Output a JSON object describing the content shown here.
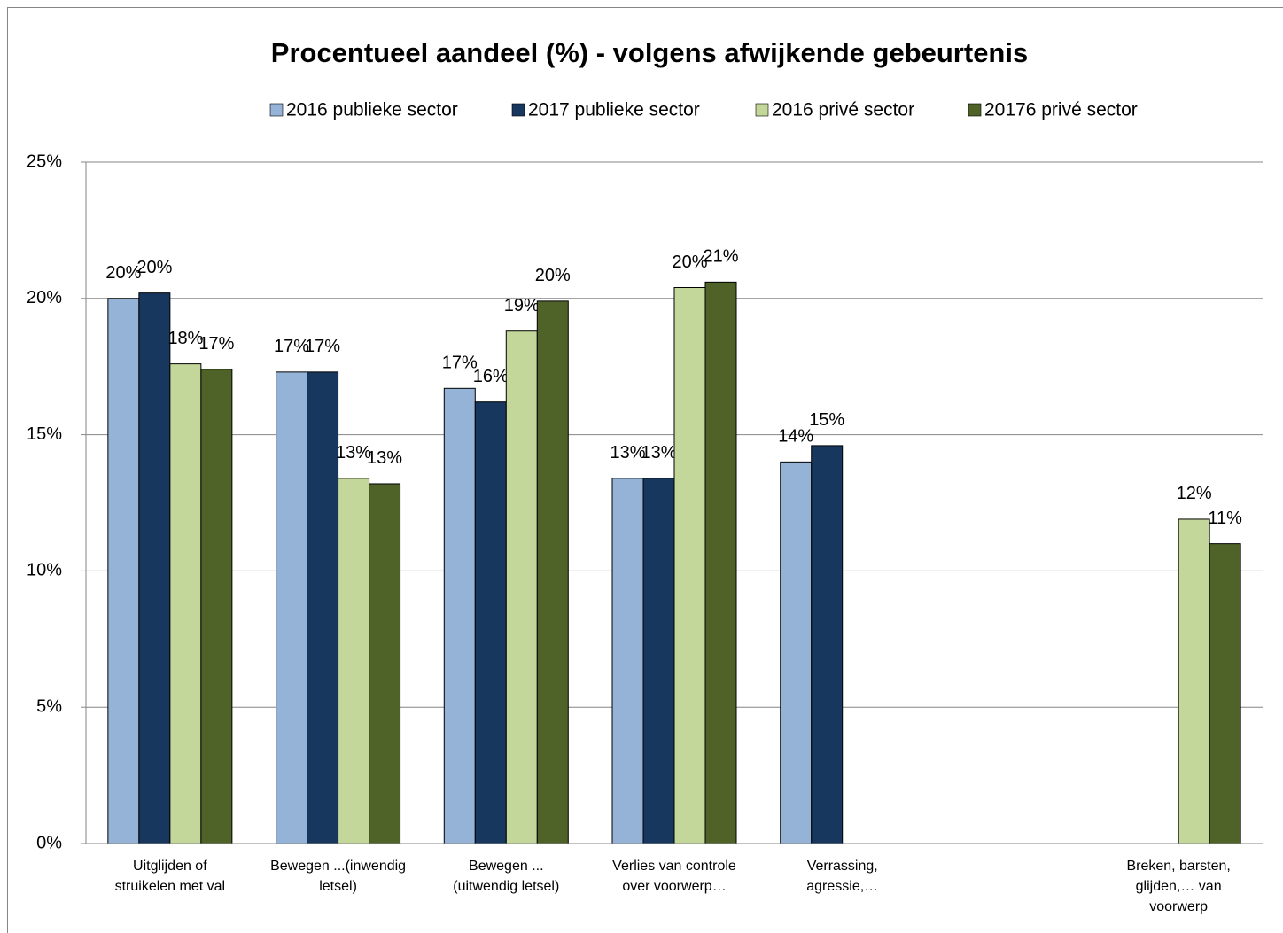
{
  "chart_data": {
    "type": "bar",
    "title": "Procentueel aandeel (%) - volgens afwijkende gebeurtenis",
    "categories": [
      "Uitglijden of\nstruikelen met val",
      "Bewegen ...(inwendig\nletsel)",
      "Bewegen ...\n(uitwendig letsel)",
      "Verlies van controle\nover voorwerp…",
      "Verrassing,\nagressie,…",
      null,
      "Breken, barsten,\nglijden,… van\nvoorwerp"
    ],
    "series": [
      {
        "name": "2016 publieke sector",
        "color": "#95b3d7",
        "values": [
          20.0,
          17.3,
          16.7,
          13.4,
          14.0,
          null,
          null
        ],
        "value_labels": [
          "20%",
          "17%",
          "17%",
          "13%",
          "14%",
          null,
          null
        ]
      },
      {
        "name": "2017 publieke sector",
        "color": "#17375e",
        "values": [
          20.2,
          17.3,
          16.2,
          13.4,
          14.6,
          null,
          null
        ],
        "value_labels": [
          "20%",
          "17%",
          "16%",
          "13%",
          "15%",
          null,
          null
        ]
      },
      {
        "name": "2016 privé sector",
        "color": "#c4d79b",
        "values": [
          17.6,
          13.4,
          18.8,
          20.4,
          null,
          null,
          11.9
        ],
        "value_labels": [
          "18%",
          "13%",
          "19%",
          "20%",
          null,
          null,
          "12%"
        ]
      },
      {
        "name": "20176 privé sector",
        "color": "#4f6228",
        "values": [
          17.4,
          13.2,
          19.9,
          20.6,
          null,
          null,
          11.0
        ],
        "value_labels": [
          "17%",
          "13%",
          "20%",
          "21%",
          null,
          null,
          "11%"
        ]
      }
    ],
    "ylim": [
      0,
      25
    ],
    "yticks": [
      {
        "value": 0,
        "label": "0%"
      },
      {
        "value": 5,
        "label": "5%"
      },
      {
        "value": 10,
        "label": "10%"
      },
      {
        "value": 15,
        "label": "15%"
      },
      {
        "value": 20,
        "label": "20%"
      },
      {
        "value": 25,
        "label": "25%"
      }
    ],
    "grid": true
  }
}
